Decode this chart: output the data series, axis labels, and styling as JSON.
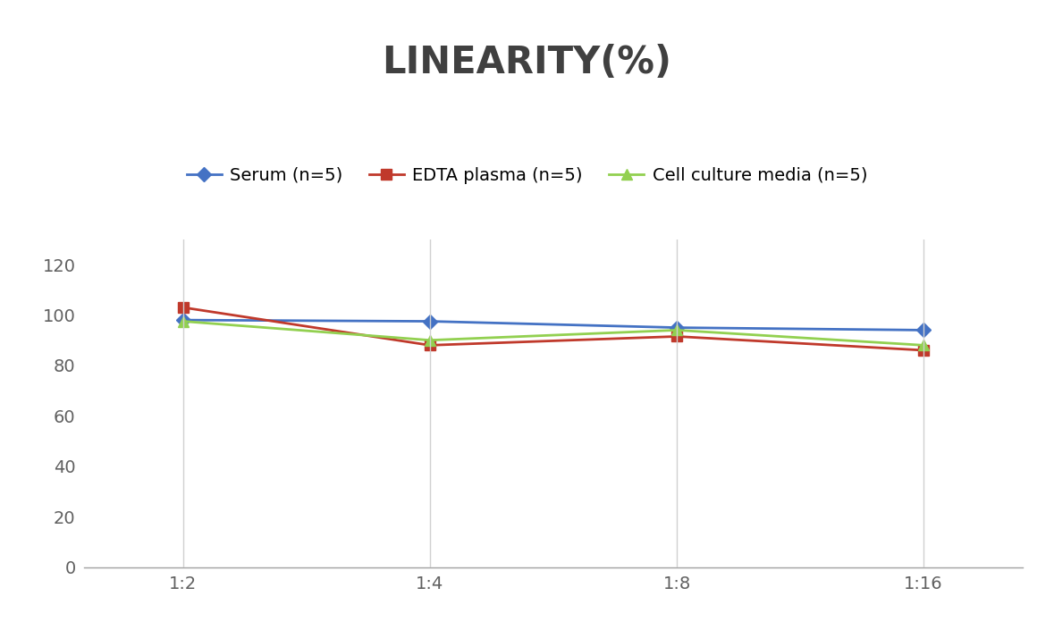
{
  "title": "LINEARITY(%)",
  "title_fontsize": 30,
  "title_fontweight": "bold",
  "title_color": "#404040",
  "x_labels": [
    "1:2",
    "1:4",
    "1:8",
    "1:16"
  ],
  "x_positions": [
    0,
    1,
    2,
    3
  ],
  "series": [
    {
      "label": "Serum (n=5)",
      "values": [
        98,
        97.5,
        95,
        94
      ],
      "color": "#4472C4",
      "marker": "D",
      "marker_size": 8,
      "linewidth": 2
    },
    {
      "label": "EDTA plasma (n=5)",
      "values": [
        103,
        88,
        91.5,
        86
      ],
      "color": "#C0392B",
      "marker": "s",
      "marker_size": 8,
      "linewidth": 2
    },
    {
      "label": "Cell culture media (n=5)",
      "values": [
        97.5,
        90,
        94,
        88
      ],
      "color": "#92D050",
      "marker": "^",
      "marker_size": 8,
      "linewidth": 2
    }
  ],
  "ylim": [
    0,
    130
  ],
  "yticks": [
    0,
    20,
    40,
    60,
    80,
    100,
    120
  ],
  "background_color": "#ffffff",
  "grid_color": "#d0d0d0",
  "legend_fontsize": 14,
  "axis_tick_fontsize": 14,
  "tick_color": "#606060"
}
